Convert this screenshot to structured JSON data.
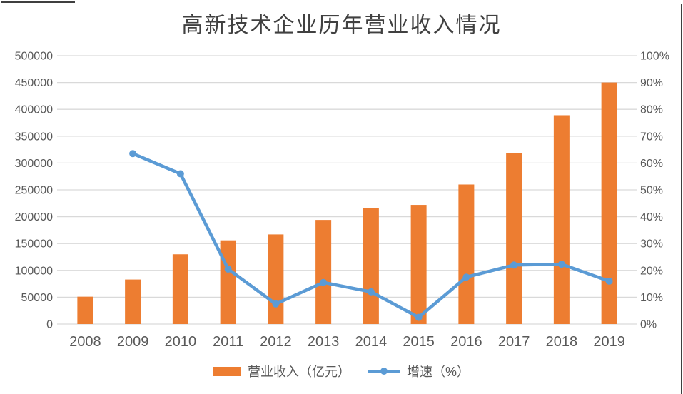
{
  "chart_data": {
    "type": "bar",
    "subtype": "combo-bar-line-dual-axis",
    "title": "高新技术企业历年营业收入情况",
    "categories": [
      "2008",
      "2009",
      "2010",
      "2011",
      "2012",
      "2013",
      "2014",
      "2015",
      "2016",
      "2017",
      "2018",
      "2019"
    ],
    "series": [
      {
        "name": "营业收入（亿元）",
        "type": "bar",
        "axis": "left",
        "color": "#ED7D31",
        "values": [
          51000,
          83000,
          130000,
          156000,
          167000,
          194000,
          216000,
          222000,
          260000,
          318000,
          389000,
          450000
        ]
      },
      {
        "name": "增速（%）",
        "type": "line",
        "axis": "right",
        "color": "#5B9BD5",
        "marker": "circle",
        "values": [
          null,
          63.5,
          56,
          20.5,
          7.5,
          15.5,
          12,
          2.5,
          17.5,
          22,
          22.3,
          16
        ]
      }
    ],
    "left_axis": {
      "min": 0,
      "max": 500000,
      "tick_step": 50000,
      "ticks": [
        "0",
        "50000",
        "100000",
        "150000",
        "200000",
        "250000",
        "300000",
        "350000",
        "400000",
        "450000",
        "500000"
      ]
    },
    "right_axis": {
      "min": 0,
      "max": 100,
      "tick_step": 10,
      "ticks": [
        "0%",
        "10%",
        "20%",
        "30%",
        "40%",
        "50%",
        "60%",
        "70%",
        "80%",
        "90%",
        "100%"
      ]
    },
    "grid": true,
    "legend_position": "bottom",
    "colors": {
      "grid": "#D9D9D9",
      "axis_line": "#D9D9D9",
      "axis_text": "#595959",
      "title_text": "#404040",
      "bar": "#ED7D31",
      "line": "#5B9BD5"
    }
  }
}
